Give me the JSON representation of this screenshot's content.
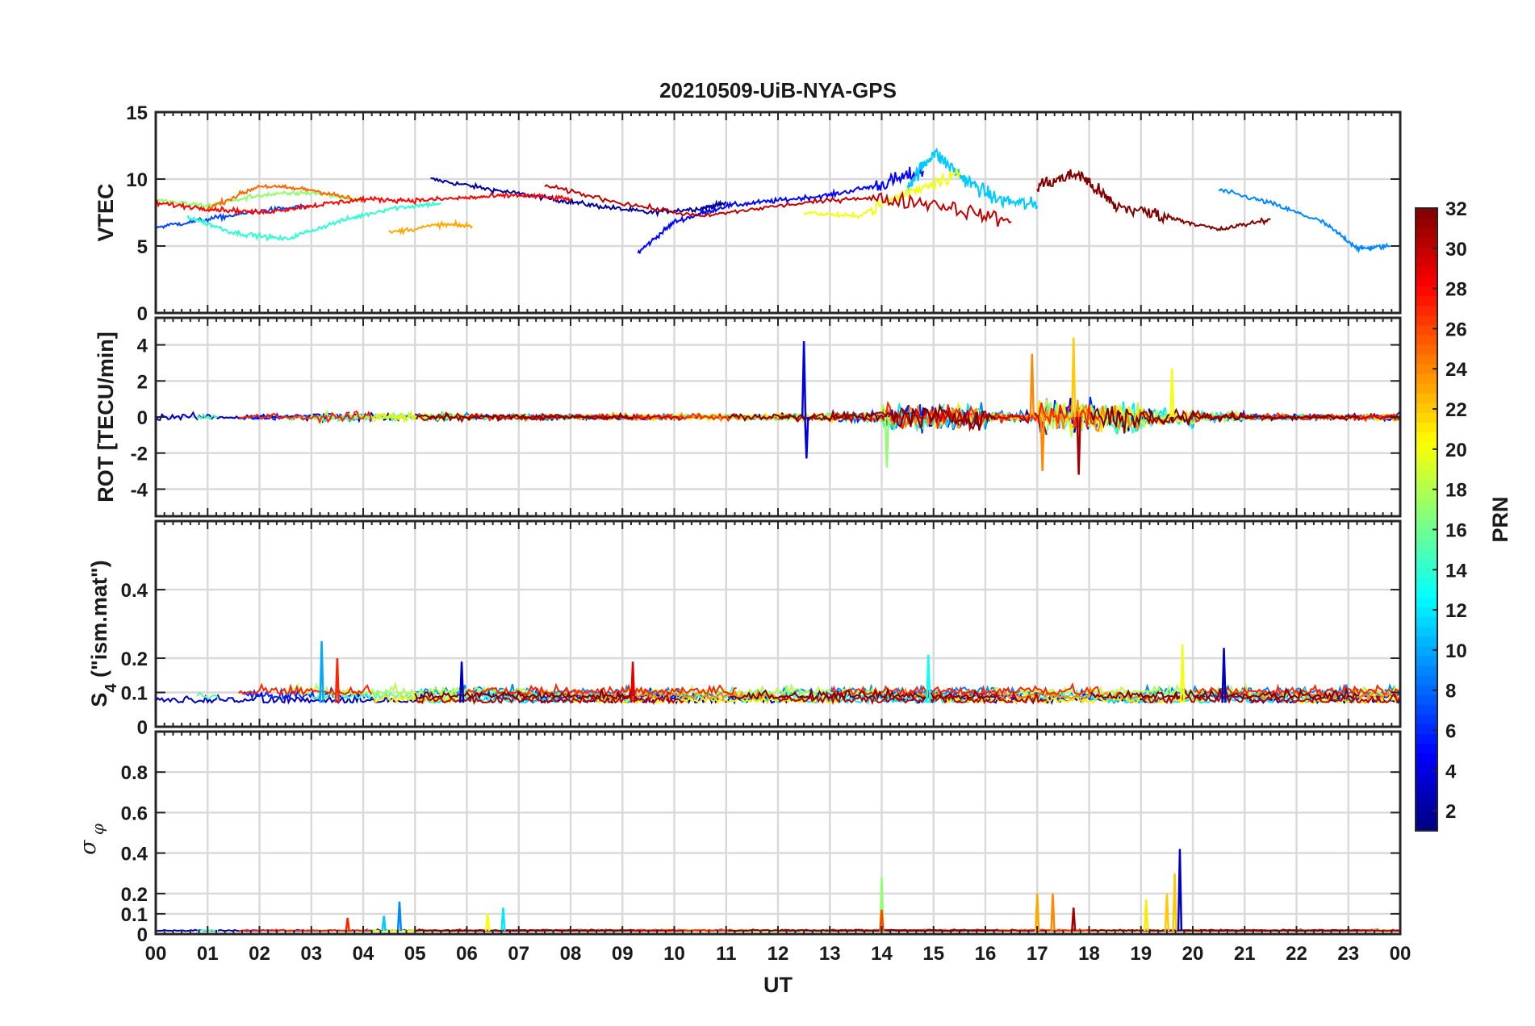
{
  "title": "20210509-UiB-NYA-GPS",
  "colors": {
    "grid": "#d9d9d9",
    "frame": "#262626",
    "background": "#ffffff",
    "text": "#1a1a1a"
  },
  "chart_data": [
    {
      "type": "line",
      "name": "vtec_panel",
      "ylabel": "VTEC",
      "xlabel": "",
      "ylim": [
        0,
        15
      ],
      "yticks": [
        0,
        5,
        10,
        15
      ],
      "ytick_labels": [
        "0",
        "5",
        "10",
        "15"
      ],
      "xlim": [
        0,
        24
      ],
      "grid": true,
      "color_by": "PRN",
      "series": [
        {
          "prn": 2,
          "x": [
            5.3,
            6.5,
            7.5,
            8.5,
            9.5,
            10.5,
            11.0
          ],
          "y": [
            10.0,
            9.2,
            8.6,
            8.0,
            7.5,
            7.8,
            8.2
          ]
        },
        {
          "prn": 5,
          "x": [
            9.3,
            10.0,
            11.0,
            12.0,
            13.0,
            14.0,
            14.8
          ],
          "y": [
            4.5,
            6.8,
            8.0,
            8.4,
            8.8,
            9.6,
            10.6
          ]
        },
        {
          "prn": 7,
          "x": [
            0.0,
            1.0,
            2.0,
            3.0
          ],
          "y": [
            6.4,
            7.0,
            7.6,
            8.0
          ]
        },
        {
          "prn": 9,
          "x": [
            20.5,
            21.5,
            22.5,
            23.2,
            23.8
          ],
          "y": [
            9.2,
            8.2,
            6.8,
            4.8,
            5.0
          ]
        },
        {
          "prn": 11,
          "x": [
            14.5,
            15.0,
            15.6,
            16.2,
            17.0
          ],
          "y": [
            9.5,
            12.0,
            10.0,
            8.5,
            8.0
          ]
        },
        {
          "prn": 14,
          "x": [
            0.6,
            1.5,
            2.5,
            3.5,
            4.5,
            5.5
          ],
          "y": [
            7.2,
            6.0,
            5.5,
            6.8,
            7.8,
            8.2
          ]
        },
        {
          "prn": 17,
          "x": [
            0.0,
            1.0,
            2.0,
            3.0,
            4.0
          ],
          "y": [
            8.4,
            8.0,
            8.8,
            9.0,
            8.4
          ]
        },
        {
          "prn": 20,
          "x": [
            12.5,
            13.5,
            14.5,
            15.5
          ],
          "y": [
            7.5,
            7.2,
            9.0,
            10.5
          ]
        },
        {
          "prn": 23,
          "x": [
            4.5,
            5.5,
            6.1
          ],
          "y": [
            6.0,
            6.6,
            6.5
          ]
        },
        {
          "prn": 25,
          "x": [
            1.0,
            2.0,
            3.0,
            3.8
          ],
          "y": [
            7.8,
            9.5,
            9.2,
            8.5
          ]
        },
        {
          "prn": 28,
          "x": [
            0.0,
            1.0,
            2.0,
            3.0,
            4.0,
            5.0,
            6.0,
            7.0,
            8.0
          ],
          "y": [
            8.2,
            7.8,
            7.5,
            8.0,
            8.5,
            8.4,
            8.6,
            8.8,
            8.5
          ]
        },
        {
          "prn": 30,
          "x": [
            7.5,
            9.0,
            10.5,
            12.0,
            13.5,
            15.0,
            16.5
          ],
          "y": [
            9.5,
            8.2,
            7.2,
            8.0,
            8.6,
            8.2,
            6.8
          ]
        },
        {
          "prn": 32,
          "x": [
            17.0,
            17.8,
            18.5,
            19.5,
            20.5,
            21.5
          ],
          "y": [
            9.5,
            10.4,
            8.0,
            7.2,
            6.2,
            7.0
          ]
        }
      ]
    },
    {
      "type": "line",
      "name": "rot_panel",
      "ylabel": "ROT [TECU/min]",
      "xlabel": "",
      "ylim": [
        -5.5,
        5.5
      ],
      "yticks": [
        -4,
        -2,
        0,
        2,
        4
      ],
      "ytick_labels": [
        "-4",
        "-2",
        "0",
        "2",
        "4"
      ],
      "xlim": [
        0,
        24
      ],
      "grid": true,
      "color_by": "PRN",
      "peaks": [
        {
          "prn": 4,
          "x": 12.5,
          "y": 4.2
        },
        {
          "prn": 4,
          "x": 12.55,
          "y": -2.3
        },
        {
          "prn": 22,
          "x": 17.7,
          "y": 4.4
        },
        {
          "prn": 24,
          "x": 16.9,
          "y": 3.5
        },
        {
          "prn": 24,
          "x": 17.1,
          "y": -3.0
        },
        {
          "prn": 31,
          "x": 17.8,
          "y": -3.2
        },
        {
          "prn": 17,
          "x": 14.1,
          "y": -2.8
        },
        {
          "prn": 20,
          "x": 19.6,
          "y": 2.7
        }
      ],
      "noise_amplitude_by_hour": [
        0.35,
        0.35,
        0.35,
        0.55,
        0.5,
        0.4,
        0.3,
        0.3,
        0.3,
        0.3,
        0.3,
        0.3,
        0.4,
        0.5,
        1.2,
        1.2,
        0.5,
        1.8,
        1.8,
        0.9,
        0.5,
        0.3,
        0.3,
        0.35
      ]
    },
    {
      "type": "line",
      "name": "s4_panel",
      "ylabel": "S4 (\"ism.mat\")",
      "xlabel": "",
      "ylim": [
        0,
        0.6
      ],
      "yticks": [
        0,
        0.1,
        0.2,
        0.4
      ],
      "ytick_labels": [
        "0",
        "0.1",
        "0.2",
        "0.4"
      ],
      "xlim": [
        0,
        24
      ],
      "grid": true,
      "color_by": "PRN",
      "peaks": [
        {
          "prn": 10,
          "x": 3.2,
          "y": 0.25
        },
        {
          "prn": 27,
          "x": 3.5,
          "y": 0.2
        },
        {
          "prn": 3,
          "x": 5.9,
          "y": 0.19
        },
        {
          "prn": 29,
          "x": 9.2,
          "y": 0.19
        },
        {
          "prn": 20,
          "x": 19.8,
          "y": 0.24
        },
        {
          "prn": 3,
          "x": 20.6,
          "y": 0.23
        },
        {
          "prn": 13,
          "x": 14.9,
          "y": 0.21
        }
      ],
      "baseline": 0.07
    },
    {
      "type": "line",
      "name": "sigma_phi_panel",
      "ylabel": "σφ",
      "xlabel": "UT",
      "ylim": [
        0,
        1
      ],
      "yticks": [
        0,
        0.1,
        0.2,
        0.4,
        0.6,
        0.8
      ],
      "ytick_labels": [
        "0",
        "0.1",
        "0.2",
        "0.4",
        "0.6",
        "0.8"
      ],
      "xlim": [
        0,
        24
      ],
      "xtick_labels": [
        "00",
        "01",
        "02",
        "03",
        "04",
        "05",
        "06",
        "07",
        "08",
        "09",
        "10",
        "11",
        "12",
        "13",
        "14",
        "15",
        "16",
        "17",
        "18",
        "19",
        "20",
        "21",
        "22",
        "23",
        "00"
      ],
      "grid": true,
      "color_by": "PRN",
      "peaks": [
        {
          "prn": 9,
          "x": 4.7,
          "y": 0.16
        },
        {
          "prn": 11,
          "x": 4.4,
          "y": 0.09
        },
        {
          "prn": 27,
          "x": 3.7,
          "y": 0.08
        },
        {
          "prn": 20,
          "x": 6.4,
          "y": 0.1
        },
        {
          "prn": 12,
          "x": 6.7,
          "y": 0.13
        },
        {
          "prn": 17,
          "x": 14.0,
          "y": 0.28
        },
        {
          "prn": 26,
          "x": 14.0,
          "y": 0.12
        },
        {
          "prn": 23,
          "x": 17.0,
          "y": 0.2
        },
        {
          "prn": 24,
          "x": 17.3,
          "y": 0.2
        },
        {
          "prn": 31,
          "x": 17.7,
          "y": 0.13
        },
        {
          "prn": 21,
          "x": 19.1,
          "y": 0.17
        },
        {
          "prn": 22,
          "x": 19.5,
          "y": 0.2
        },
        {
          "prn": 3,
          "x": 19.75,
          "y": 0.42
        },
        {
          "prn": 22,
          "x": 19.65,
          "y": 0.3
        }
      ],
      "baseline": 0.015
    }
  ],
  "colorbar": {
    "label": "PRN",
    "min": 1,
    "max": 32,
    "ticks": [
      2,
      4,
      6,
      8,
      10,
      12,
      14,
      16,
      18,
      20,
      22,
      24,
      26,
      28,
      30,
      32
    ],
    "tick_labels": [
      "2",
      "4",
      "6",
      "8",
      "10",
      "12",
      "14",
      "16",
      "18",
      "20",
      "22",
      "24",
      "26",
      "28",
      "30",
      "32"
    ],
    "colormap": "jet"
  }
}
